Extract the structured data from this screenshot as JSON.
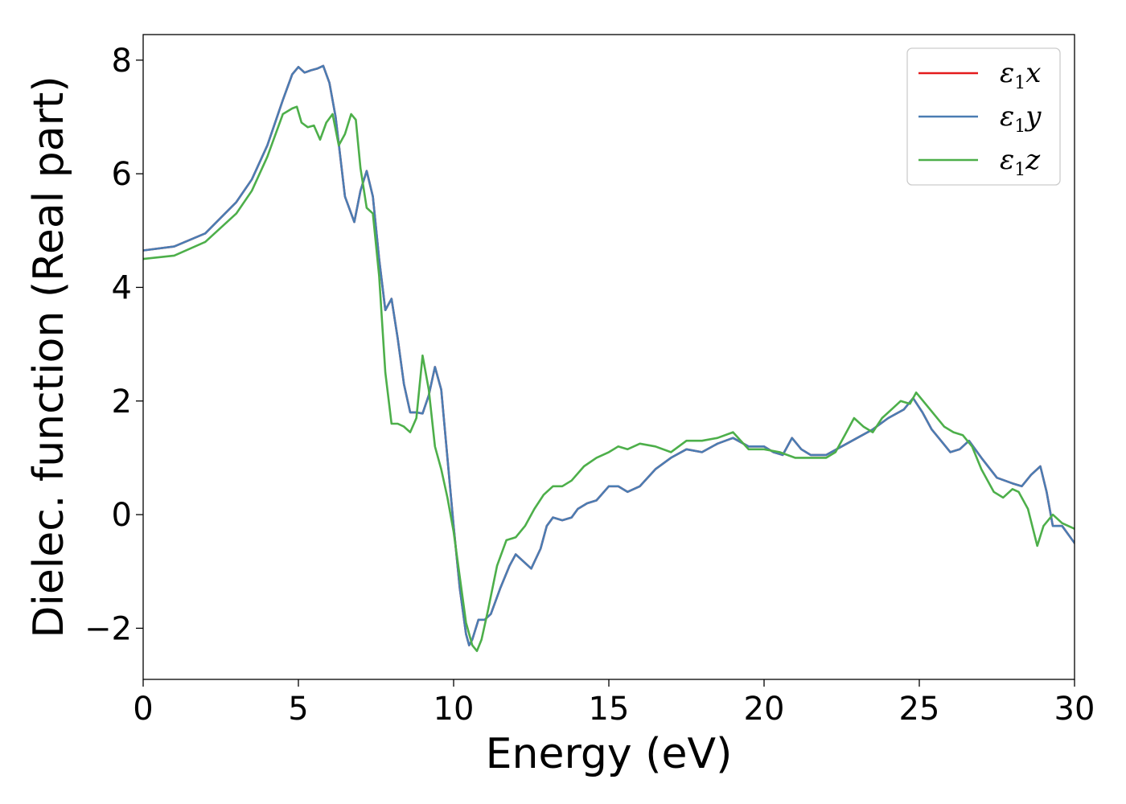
{
  "chart_data": {
    "type": "line",
    "title": "",
    "xlabel": "Energy (eV)",
    "ylabel": "Dielec. function (Real part)",
    "xlim": [
      0,
      30
    ],
    "ylim": [
      -2.9,
      8.45
    ],
    "xticks": [
      0,
      5,
      10,
      15,
      20,
      25,
      30
    ],
    "yticks": [
      -2,
      0,
      2,
      4,
      6,
      8
    ],
    "ytick_labels": [
      "−2",
      "0",
      "2",
      "4",
      "6",
      "8"
    ],
    "grid": false,
    "legend_position": "top-right",
    "series": [
      {
        "name": "ε1x",
        "legend_main": "ε",
        "legend_sub": "1",
        "legend_var": "x",
        "color": "#e41a1c",
        "x": [
          0,
          1,
          2,
          3,
          3.5,
          4,
          4.5,
          4.8,
          5.0,
          5.2,
          5.4,
          5.6,
          5.8,
          6.0,
          6.2,
          6.5,
          6.8,
          7.0,
          7.2,
          7.4,
          7.6,
          7.8,
          8.0,
          8.2,
          8.4,
          8.6,
          8.8,
          9.0,
          9.2,
          9.4,
          9.6,
          9.8,
          10.0,
          10.2,
          10.4,
          10.5,
          10.6,
          10.8,
          11.0,
          11.2,
          11.5,
          11.8,
          12.0,
          12.2,
          12.5,
          12.8,
          13.0,
          13.2,
          13.5,
          13.8,
          14.0,
          14.3,
          14.6,
          15.0,
          15.3,
          15.6,
          16.0,
          16.5,
          17.0,
          17.5,
          18.0,
          18.5,
          19.0,
          19.5,
          20.0,
          20.3,
          20.6,
          20.9,
          21.2,
          21.5,
          22.0,
          22.5,
          23.0,
          23.5,
          24.0,
          24.5,
          24.8,
          25.1,
          25.4,
          25.7,
          26.0,
          26.3,
          26.6,
          27.0,
          27.5,
          28.0,
          28.3,
          28.6,
          28.9,
          29.1,
          29.3,
          29.6,
          30.0
        ],
        "y": [
          4.65,
          4.72,
          4.95,
          5.5,
          5.9,
          6.5,
          7.3,
          7.75,
          7.88,
          7.78,
          7.82,
          7.85,
          7.9,
          7.6,
          7.0,
          5.6,
          5.15,
          5.7,
          6.05,
          5.6,
          4.5,
          3.6,
          3.8,
          3.1,
          2.3,
          1.8,
          1.8,
          1.78,
          2.1,
          2.6,
          2.2,
          1.0,
          -0.2,
          -1.3,
          -2.1,
          -2.3,
          -2.2,
          -1.85,
          -1.85,
          -1.75,
          -1.3,
          -0.9,
          -0.7,
          -0.8,
          -0.95,
          -0.6,
          -0.2,
          -0.05,
          -0.1,
          -0.05,
          0.1,
          0.2,
          0.25,
          0.5,
          0.5,
          0.4,
          0.5,
          0.8,
          1.0,
          1.15,
          1.1,
          1.25,
          1.35,
          1.2,
          1.2,
          1.1,
          1.05,
          1.35,
          1.15,
          1.05,
          1.05,
          1.2,
          1.35,
          1.5,
          1.7,
          1.85,
          2.05,
          1.8,
          1.5,
          1.3,
          1.1,
          1.15,
          1.3,
          1.0,
          0.65,
          0.55,
          0.5,
          0.7,
          0.85,
          0.4,
          -0.2,
          -0.2,
          -0.5
        ]
      },
      {
        "name": "ε1y",
        "legend_main": "ε",
        "legend_sub": "1",
        "legend_var": "y",
        "color": "#4a7db3",
        "x": [
          0,
          1,
          2,
          3,
          3.5,
          4,
          4.5,
          4.8,
          5.0,
          5.2,
          5.4,
          5.6,
          5.8,
          6.0,
          6.2,
          6.5,
          6.8,
          7.0,
          7.2,
          7.4,
          7.6,
          7.8,
          8.0,
          8.2,
          8.4,
          8.6,
          8.8,
          9.0,
          9.2,
          9.4,
          9.6,
          9.8,
          10.0,
          10.2,
          10.4,
          10.5,
          10.6,
          10.8,
          11.0,
          11.2,
          11.5,
          11.8,
          12.0,
          12.2,
          12.5,
          12.8,
          13.0,
          13.2,
          13.5,
          13.8,
          14.0,
          14.3,
          14.6,
          15.0,
          15.3,
          15.6,
          16.0,
          16.5,
          17.0,
          17.5,
          18.0,
          18.5,
          19.0,
          19.5,
          20.0,
          20.3,
          20.6,
          20.9,
          21.2,
          21.5,
          22.0,
          22.5,
          23.0,
          23.5,
          24.0,
          24.5,
          24.8,
          25.1,
          25.4,
          25.7,
          26.0,
          26.3,
          26.6,
          27.0,
          27.5,
          28.0,
          28.3,
          28.6,
          28.9,
          29.1,
          29.3,
          29.6,
          30.0
        ],
        "y": [
          4.65,
          4.72,
          4.95,
          5.5,
          5.9,
          6.5,
          7.3,
          7.75,
          7.88,
          7.78,
          7.82,
          7.85,
          7.9,
          7.6,
          7.0,
          5.6,
          5.15,
          5.7,
          6.05,
          5.6,
          4.5,
          3.6,
          3.8,
          3.1,
          2.3,
          1.8,
          1.8,
          1.78,
          2.1,
          2.6,
          2.2,
          1.0,
          -0.2,
          -1.3,
          -2.1,
          -2.3,
          -2.2,
          -1.85,
          -1.85,
          -1.75,
          -1.3,
          -0.9,
          -0.7,
          -0.8,
          -0.95,
          -0.6,
          -0.2,
          -0.05,
          -0.1,
          -0.05,
          0.1,
          0.2,
          0.25,
          0.5,
          0.5,
          0.4,
          0.5,
          0.8,
          1.0,
          1.15,
          1.1,
          1.25,
          1.35,
          1.2,
          1.2,
          1.1,
          1.05,
          1.35,
          1.15,
          1.05,
          1.05,
          1.2,
          1.35,
          1.5,
          1.7,
          1.85,
          2.05,
          1.8,
          1.5,
          1.3,
          1.1,
          1.15,
          1.3,
          1.0,
          0.65,
          0.55,
          0.5,
          0.7,
          0.85,
          0.4,
          -0.2,
          -0.2,
          -0.5
        ]
      },
      {
        "name": "ε1z",
        "legend_main": "ε",
        "legend_sub": "1",
        "legend_var": "z",
        "color": "#4daf4a",
        "x": [
          0,
          1,
          2,
          3,
          3.5,
          4,
          4.5,
          4.8,
          4.95,
          5.1,
          5.3,
          5.5,
          5.7,
          5.9,
          6.1,
          6.3,
          6.5,
          6.7,
          6.85,
          7.0,
          7.2,
          7.4,
          7.6,
          7.8,
          8.0,
          8.2,
          8.4,
          8.6,
          8.8,
          9.0,
          9.2,
          9.4,
          9.6,
          9.8,
          10.0,
          10.2,
          10.4,
          10.6,
          10.75,
          10.9,
          11.1,
          11.4,
          11.7,
          12.0,
          12.3,
          12.6,
          12.9,
          13.2,
          13.5,
          13.8,
          14.2,
          14.6,
          15.0,
          15.3,
          15.6,
          16.0,
          16.5,
          17.0,
          17.5,
          18.0,
          18.5,
          19.0,
          19.5,
          20.0,
          20.5,
          21.0,
          21.5,
          22.0,
          22.3,
          22.6,
          22.9,
          23.2,
          23.5,
          23.8,
          24.1,
          24.4,
          24.7,
          24.9,
          25.2,
          25.5,
          25.8,
          26.1,
          26.4,
          26.7,
          27.0,
          27.4,
          27.7,
          28.0,
          28.2,
          28.5,
          28.8,
          29.0,
          29.3,
          29.6,
          30.0
        ],
        "y": [
          4.5,
          4.56,
          4.8,
          5.3,
          5.7,
          6.3,
          7.05,
          7.15,
          7.18,
          6.9,
          6.82,
          6.85,
          6.6,
          6.9,
          7.05,
          6.5,
          6.7,
          7.05,
          6.95,
          6.1,
          5.4,
          5.3,
          4.2,
          2.5,
          1.6,
          1.6,
          1.55,
          1.45,
          1.7,
          2.8,
          2.2,
          1.2,
          0.8,
          0.3,
          -0.3,
          -1.1,
          -1.9,
          -2.3,
          -2.4,
          -2.2,
          -1.7,
          -0.9,
          -0.45,
          -0.4,
          -0.2,
          0.1,
          0.35,
          0.5,
          0.5,
          0.6,
          0.85,
          1.0,
          1.1,
          1.2,
          1.15,
          1.25,
          1.2,
          1.1,
          1.3,
          1.3,
          1.35,
          1.45,
          1.15,
          1.15,
          1.1,
          1.0,
          1.0,
          1.0,
          1.1,
          1.4,
          1.7,
          1.55,
          1.45,
          1.7,
          1.85,
          2.0,
          1.95,
          2.15,
          1.95,
          1.75,
          1.55,
          1.45,
          1.4,
          1.2,
          0.8,
          0.4,
          0.3,
          0.45,
          0.4,
          0.1,
          -0.55,
          -0.2,
          0.0,
          -0.15,
          -0.25
        ]
      }
    ]
  }
}
